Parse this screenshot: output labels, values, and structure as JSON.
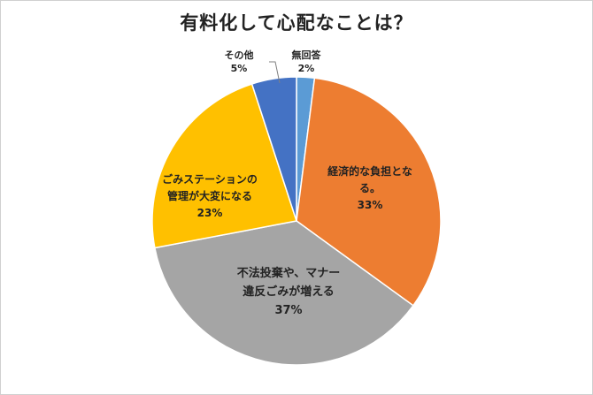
{
  "chart_data": {
    "type": "pie",
    "title": "有料化して心配なことは？",
    "slices": [
      {
        "label": "無回答",
        "value": 2,
        "value_label": "2%",
        "color": "#5b9bd5",
        "label_lines": [
          "無回答"
        ]
      },
      {
        "label": "経済的な負担となる。",
        "value": 33,
        "value_label": "33%",
        "color": "#ed7d31",
        "label_lines": [
          "経済的な負担とな",
          "る。"
        ]
      },
      {
        "label": "不法投棄や、マナー違反ごみが増える",
        "value": 37,
        "value_label": "37%",
        "color": "#a5a5a5",
        "label_lines": [
          "不法投棄や、マナー",
          "違反ごみが増える"
        ]
      },
      {
        "label": "ごみステーションの管理が大変になる",
        "value": 23,
        "value_label": "23%",
        "color": "#ffc000",
        "label_lines": [
          "ごみステーションの",
          "管理が大変になる"
        ]
      },
      {
        "label": "その他",
        "value": 5,
        "value_label": "5%",
        "color": "#4472c4",
        "label_lines": [
          "その他"
        ]
      }
    ],
    "start": "12 o'clock",
    "direction": "clockwise",
    "legend": "none"
  }
}
